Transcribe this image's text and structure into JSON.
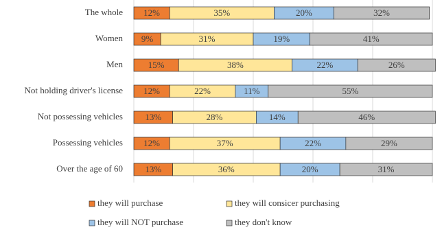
{
  "chart_data": {
    "type": "stacked-bar-horizontal",
    "categories": [
      "The whole",
      "Women",
      "Men",
      "Not holding driver's license",
      "Not possessing vehicles",
      "Possessing vehicles",
      "Over the age of 60"
    ],
    "series": [
      {
        "name": "they will purchase",
        "color": "#ed7d31",
        "values": [
          12,
          9,
          15,
          12,
          13,
          12,
          13
        ],
        "value_labels": [
          "12%",
          "9%",
          "15%",
          "12%",
          "13%",
          "12%",
          "13%"
        ]
      },
      {
        "name": "they will consicer purchasing",
        "color": "#ffe699",
        "values": [
          35,
          31,
          38,
          22,
          28,
          37,
          36
        ],
        "value_labels": [
          "35%",
          "31%",
          "38%",
          "22%",
          "28%",
          "37%",
          "36%"
        ]
      },
      {
        "name": "they will NOT purchase",
        "color": "#9dc3e6",
        "values": [
          20,
          19,
          22,
          11,
          14,
          22,
          20
        ],
        "value_labels": [
          "20%",
          "19%",
          "22%",
          "11%",
          "14%",
          "22%",
          "20%"
        ]
      },
      {
        "name": "they don't know",
        "color": "#bfbfbf",
        "values": [
          32,
          41,
          26,
          55,
          46,
          29,
          31
        ],
        "value_labels": [
          "32%",
          "41%",
          "26%",
          "55%",
          "46%",
          "29%",
          "31%"
        ]
      }
    ],
    "xlim": [
      0,
      100
    ],
    "xticks": [
      0,
      20,
      40,
      60,
      80,
      100
    ],
    "grid": true
  }
}
